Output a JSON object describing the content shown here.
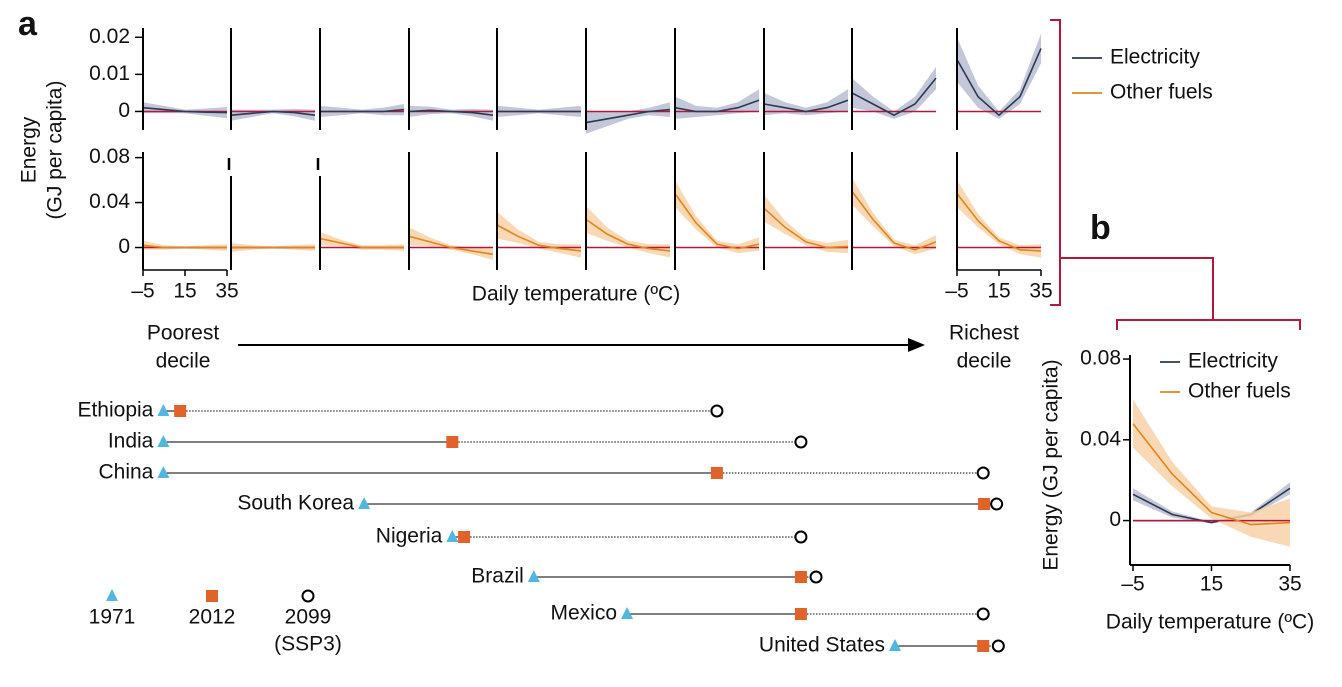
{
  "chart_data": [
    {
      "type": "multiples",
      "panel_label": "a",
      "y_label": [
        "Energy",
        "(GJ per capita)"
      ],
      "x_label": "Daily temperature (ºC)",
      "x": [
        -5,
        5,
        15,
        25,
        35
      ],
      "xlim": [
        -5,
        35
      ],
      "xticks": [
        {
          "value": -5,
          "label": "–5"
        },
        15,
        35
      ],
      "start_label": [
        "Poorest",
        "decile"
      ],
      "end_label": [
        "Richest",
        "decile"
      ],
      "zero_color": "#b5173c",
      "series": [
        {
          "name": "Electricity",
          "color": "#2b3a55",
          "band_color": "#b9bdd0",
          "ylim": [
            -0.005,
            0.0225
          ],
          "yticks": [
            0,
            0.01,
            0.02
          ],
          "deciles": [
            {
              "values": [
                0.001,
                0.0005,
                0,
                -0.0002,
                -0.0003
              ],
              "ci": [
                0.0015,
                0.001,
                0.0005,
                0.001,
                0.0015
              ]
            },
            {
              "values": [
                -0.001,
                -0.0005,
                0,
                -0.0003,
                -0.001
              ],
              "ci": [
                0.0015,
                0.001,
                0.0005,
                0.001,
                0.0015
              ]
            },
            {
              "values": [
                0,
                0,
                0,
                0,
                0.0005
              ],
              "ci": [
                0.0015,
                0.001,
                0.0005,
                0.001,
                0.0015
              ]
            },
            {
              "values": [
                0,
                0.0003,
                0,
                -0.0003,
                -0.001
              ],
              "ci": [
                0.0015,
                0.001,
                0.0005,
                0.001,
                0.0015
              ]
            },
            {
              "values": [
                0,
                0,
                0,
                0,
                0
              ],
              "ci": [
                0.0015,
                0.001,
                0.0005,
                0.001,
                0.0015
              ]
            },
            {
              "values": [
                -0.003,
                -0.002,
                -0.001,
                0,
                0.0005
              ],
              "ci": [
                0.003,
                0.002,
                0.001,
                0.001,
                0.002
              ]
            },
            {
              "values": [
                0.001,
                0,
                0,
                0.001,
                0.003
              ],
              "ci": [
                0.003,
                0.0015,
                0.001,
                0.0015,
                0.003
              ]
            },
            {
              "values": [
                0.002,
                0.001,
                0,
                0.001,
                0.003
              ],
              "ci": [
                0.003,
                0.0015,
                0.001,
                0.0015,
                0.003
              ]
            },
            {
              "values": [
                0.005,
                0.002,
                -0.001,
                0.002,
                0.009
              ],
              "ci": [
                0.004,
                0.002,
                0.001,
                0.002,
                0.003
              ]
            },
            {
              "values": [
                0.014,
                0.004,
                -0.001,
                0.004,
                0.017
              ],
              "ci": [
                0.006,
                0.003,
                0.001,
                0.002,
                0.004
              ]
            }
          ]
        },
        {
          "name": "Other fuels",
          "color": "#e0861a",
          "band_color": "#f8d2a8",
          "ylim": [
            -0.02,
            0.085
          ],
          "yticks": [
            0,
            0.04,
            0.08
          ],
          "deciles": [
            {
              "values": [
                0.002,
                0,
                0,
                0,
                0
              ],
              "ci": [
                0.004,
                0.002,
                0.001,
                0.002,
                0.003
              ]
            },
            {
              "values": [
                0,
                0,
                0,
                0,
                0
              ],
              "ci": [
                0.004,
                0.002,
                0.001,
                0.002,
                0.003
              ]
            },
            {
              "values": [
                0.008,
                0.004,
                0,
                0,
                0
              ],
              "ci": [
                0.006,
                0.003,
                0.002,
                0.002,
                0.003
              ]
            },
            {
              "values": [
                0.01,
                0.005,
                0,
                -0.003,
                -0.006
              ],
              "ci": [
                0.008,
                0.004,
                0.002,
                0.003,
                0.005
              ]
            },
            {
              "values": [
                0.02,
                0.01,
                0.002,
                -0.001,
                -0.003
              ],
              "ci": [
                0.012,
                0.006,
                0.003,
                0.004,
                0.006
              ]
            },
            {
              "values": [
                0.025,
                0.012,
                0.003,
                -0.001,
                -0.003
              ],
              "ci": [
                0.012,
                0.006,
                0.003,
                0.004,
                0.006
              ]
            },
            {
              "values": [
                0.048,
                0.022,
                0.003,
                -0.001,
                0.003
              ],
              "ci": [
                0.012,
                0.006,
                0.003,
                0.004,
                0.006
              ]
            },
            {
              "values": [
                0.035,
                0.018,
                0.005,
                0,
                0.001
              ],
              "ci": [
                0.012,
                0.006,
                0.003,
                0.004,
                0.006
              ]
            },
            {
              "values": [
                0.05,
                0.025,
                0.004,
                -0.002,
                0.005
              ],
              "ci": [
                0.012,
                0.006,
                0.003,
                0.004,
                0.006
              ]
            },
            {
              "values": [
                0.048,
                0.024,
                0.006,
                -0.002,
                -0.003
              ],
              "ci": [
                0.012,
                0.006,
                0.003,
                0.004,
                0.006
              ]
            }
          ]
        }
      ]
    },
    {
      "type": "line",
      "panel_label": "b",
      "y_label": "Energy (GJ per capita)",
      "x_label": "Daily temperature (ºC)",
      "x": [
        -5,
        5,
        15,
        25,
        35
      ],
      "xlim": [
        -5,
        35
      ],
      "xticks": [
        {
          "value": -5,
          "label": "–5"
        },
        15,
        35
      ],
      "ylim": [
        -0.022,
        0.082
      ],
      "yticks": [
        0,
        0.04,
        0.08
      ],
      "series": [
        {
          "name": "Electricity",
          "color": "#2b3a55",
          "band_color": "#b9bdd0",
          "values": [
            0.013,
            0.003,
            -0.001,
            0.003,
            0.016
          ],
          "ci": [
            0.003,
            0.0015,
            0.0005,
            0.001,
            0.003
          ]
        },
        {
          "name": "Other fuels",
          "color": "#e0861a",
          "band_color": "#f8d2a8",
          "values": [
            0.048,
            0.023,
            0.004,
            -0.002,
            -0.001
          ],
          "ci": [
            0.012,
            0.006,
            0.003,
            0.006,
            0.012
          ]
        }
      ]
    },
    {
      "type": "dot",
      "categories": [
        "Ethiopia",
        "India",
        "China",
        "South Korea",
        "Nigeria",
        "Brazil",
        "Mexico",
        "United States"
      ],
      "series": [
        {
          "name": "1971",
          "color": "#4fb8e0",
          "values": [
            0.04,
            0.04,
            0.04,
            2.43,
            3.48,
            4.45,
            5.56,
            8.75
          ]
        },
        {
          "name": "2012",
          "color": "#e2632a",
          "values": [
            0.24,
            3.48,
            6.63,
            9.81,
            3.62,
            7.63,
            7.63,
            9.8
          ]
        },
        {
          "name": "2099",
          "note": "(SSP3)",
          "color": "#000000",
          "values": [
            6.63,
            7.63,
            9.8,
            9.96,
            7.63,
            7.81,
            9.8,
            9.98
          ]
        }
      ]
    }
  ]
}
